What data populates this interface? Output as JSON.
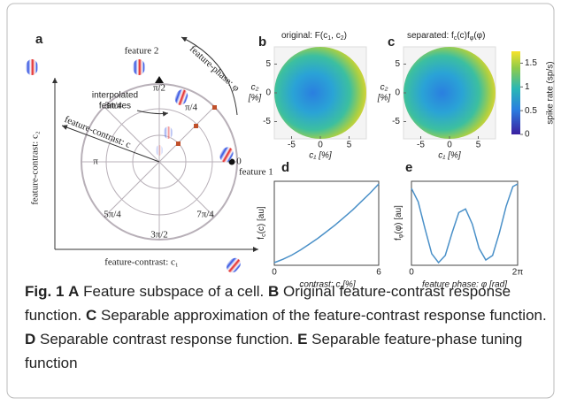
{
  "panel_a": {
    "label": "a",
    "feature2": "feature 2",
    "feature1": "feature 1",
    "phase_axis": "feature-phase: φ",
    "contrast_axis": "feature-contrast: c",
    "interpolated": [
      "interpolated",
      "features"
    ],
    "angles": [
      "0",
      "π/4",
      "π/2",
      "3π/4",
      "π",
      "5π/4",
      "3π/2",
      "7π/4"
    ],
    "x_axis": "feature-contrast: c₁",
    "y_axis": "feature-contrast: c₂"
  },
  "panel_b": {
    "label": "b",
    "title_parts": [
      "original: F(c",
      "1",
      ", c",
      "2",
      ")"
    ],
    "xlabel": "c₁ [%]",
    "ylabel": [
      "c₂",
      "[%]"
    ],
    "xlim": [
      -8,
      8
    ],
    "ylim": [
      -8,
      8
    ],
    "xticks": [
      -5,
      0,
      5
    ],
    "yticks": [
      5,
      0,
      -5
    ]
  },
  "panel_c": {
    "label": "c",
    "title_parts": [
      "separated: f",
      "c",
      "(c)f",
      "φ",
      "(φ)"
    ],
    "xlabel": "c₁ [%]",
    "ylabel": [
      "c₂",
      "[%]"
    ],
    "xlim": [
      -8,
      8
    ],
    "ylim": [
      -8,
      8
    ],
    "xticks": [
      -5,
      0,
      5
    ],
    "yticks": [
      5,
      0,
      -5
    ],
    "colorbar": {
      "label": "spike rate (sp/s)",
      "lim": [
        0,
        1.75
      ],
      "ticks": [
        0,
        0.5,
        1,
        1.5
      ]
    }
  },
  "panel_d": {
    "type": "line",
    "label": "d",
    "ylabel_parts": [
      "f",
      "c",
      "(c)  [au]"
    ],
    "xlabel": "contrast: c [%]",
    "color": "#4a90c8",
    "x": [
      0,
      0.5,
      1,
      1.5,
      2,
      2.5,
      3,
      3.5,
      4,
      4.5,
      5,
      5.5,
      6
    ],
    "values": [
      0,
      0.04,
      0.09,
      0.15,
      0.22,
      0.29,
      0.37,
      0.45,
      0.54,
      0.63,
      0.73,
      0.83,
      0.94
    ],
    "xlim": [
      0,
      6
    ],
    "xticks": [
      0,
      6
    ]
  },
  "panel_e": {
    "type": "line",
    "label": "e",
    "ylabel_parts": [
      "f",
      "φ",
      "(φ)  [au]"
    ],
    "xlabel": "feature phase: φ  [rad]",
    "color": "#4a90c8",
    "x": [
      0,
      0.4,
      0.8,
      1.2,
      1.6,
      2.0,
      2.4,
      2.8,
      3.2,
      3.6,
      4.0,
      4.4,
      4.8,
      5.2,
      5.6,
      6.0,
      6.283
    ],
    "values": [
      0.95,
      0.8,
      0.5,
      0.22,
      0.12,
      0.2,
      0.45,
      0.68,
      0.72,
      0.55,
      0.28,
      0.15,
      0.2,
      0.45,
      0.75,
      0.97,
      1.0
    ],
    "xlim": [
      0,
      6.283
    ],
    "xticks": [
      0,
      {
        "value": 6.283,
        "label": "2π"
      }
    ]
  },
  "caption": {
    "label": "Fig. 1",
    "items": [
      {
        "letter": "A",
        "text": "Feature subspace of a cell."
      },
      {
        "letter": "B",
        "text": "Original feature-contrast response function."
      },
      {
        "letter": "C",
        "text": "Separable approximation of the feature-contrast response function."
      },
      {
        "letter": "D",
        "text": "Separable contrast response function."
      },
      {
        "letter": "E",
        "text": "Separable feature-phase tuning function"
      }
    ]
  }
}
